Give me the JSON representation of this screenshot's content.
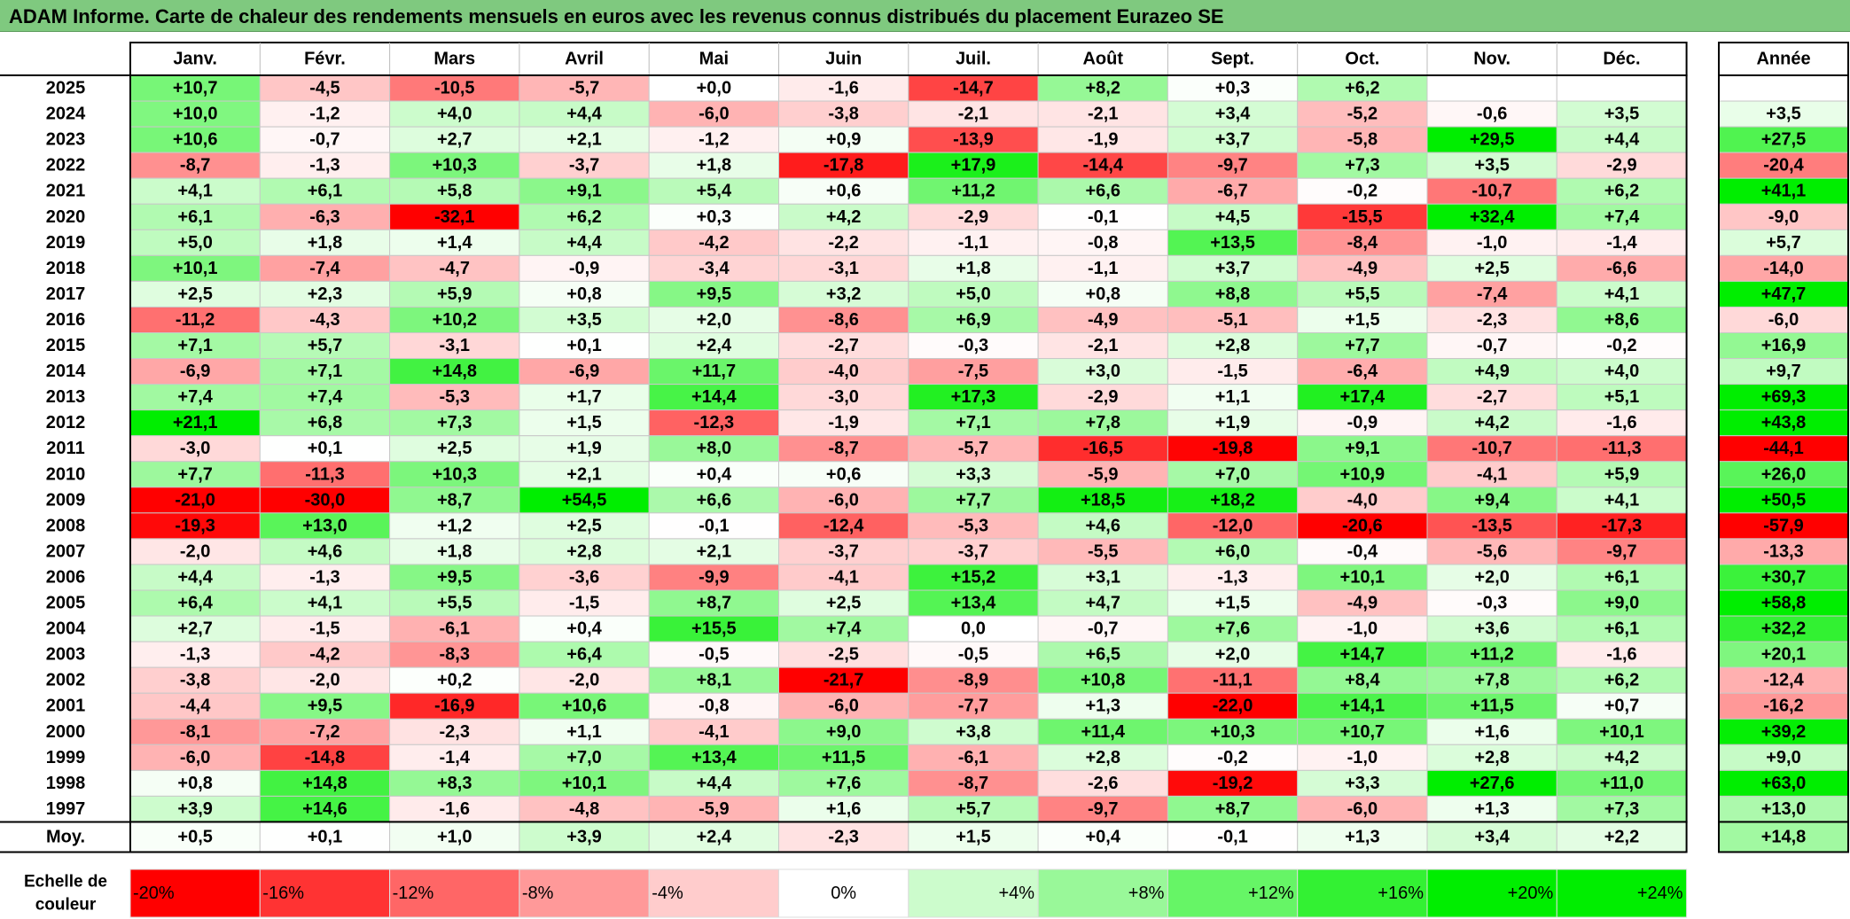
{
  "title": "ADAM Informe. Carte de chaleur des rendements mensuels en euros avec les revenus connus distribués du placement Eurazeo SE",
  "chart_data": {
    "type": "heatmap",
    "title": "ADAM Informe. Carte de chaleur des rendements mensuels en euros avec les revenus connus distribués du placement Eurazeo SE",
    "months": [
      "Janv.",
      "Févr.",
      "Mars",
      "Avril",
      "Mai",
      "Juin",
      "Juil.",
      "Août",
      "Sept.",
      "Oct.",
      "Nov.",
      "Déc."
    ],
    "annual_header": "Année",
    "rows": [
      {
        "year": "2025",
        "values": [
          "+10,7",
          "-4,5",
          "-10,5",
          "-5,7",
          "+0,0",
          "-1,6",
          "-14,7",
          "+8,2",
          "+0,3",
          "+6,2",
          "",
          ""
        ],
        "annual": ""
      },
      {
        "year": "2024",
        "values": [
          "+10,0",
          "-1,2",
          "+4,0",
          "+4,4",
          "-6,0",
          "-3,8",
          "-2,1",
          "-2,1",
          "+3,4",
          "-5,2",
          "-0,6",
          "+3,5"
        ],
        "annual": "+3,5"
      },
      {
        "year": "2023",
        "values": [
          "+10,6",
          "-0,7",
          "+2,7",
          "+2,1",
          "-1,2",
          "+0,9",
          "-13,9",
          "-1,9",
          "+3,7",
          "-5,8",
          "+29,5",
          "+4,4"
        ],
        "annual": "+27,5"
      },
      {
        "year": "2022",
        "values": [
          "-8,7",
          "-1,3",
          "+10,3",
          "-3,7",
          "+1,8",
          "-17,8",
          "+17,9",
          "-14,4",
          "-9,7",
          "+7,3",
          "+3,5",
          "-2,9"
        ],
        "annual": "-20,4"
      },
      {
        "year": "2021",
        "values": [
          "+4,1",
          "+6,1",
          "+5,8",
          "+9,1",
          "+5,4",
          "+0,6",
          "+11,2",
          "+6,6",
          "-6,7",
          "-0,2",
          "-10,7",
          "+6,2"
        ],
        "annual": "+41,1"
      },
      {
        "year": "2020",
        "values": [
          "+6,1",
          "-6,3",
          "-32,1",
          "+6,2",
          "+0,3",
          "+4,2",
          "-2,9",
          "-0,1",
          "+4,5",
          "-15,5",
          "+32,4",
          "+7,4"
        ],
        "annual": "-9,0"
      },
      {
        "year": "2019",
        "values": [
          "+5,0",
          "+1,8",
          "+1,4",
          "+4,4",
          "-4,2",
          "-2,2",
          "-1,1",
          "-0,8",
          "+13,5",
          "-8,4",
          "-1,0",
          "-1,4"
        ],
        "annual": "+5,7"
      },
      {
        "year": "2018",
        "values": [
          "+10,1",
          "-7,4",
          "-4,7",
          "-0,9",
          "-3,4",
          "-3,1",
          "+1,8",
          "-1,1",
          "+3,7",
          "-4,9",
          "+2,5",
          "-6,6"
        ],
        "annual": "-14,0"
      },
      {
        "year": "2017",
        "values": [
          "+2,5",
          "+2,3",
          "+5,9",
          "+0,8",
          "+9,5",
          "+3,2",
          "+5,0",
          "+0,8",
          "+8,8",
          "+5,5",
          "-7,4",
          "+4,1"
        ],
        "annual": "+47,7"
      },
      {
        "year": "2016",
        "values": [
          "-11,2",
          "-4,3",
          "+10,2",
          "+3,5",
          "+2,0",
          "-8,6",
          "+6,9",
          "-4,9",
          "-5,1",
          "+1,5",
          "-2,3",
          "+8,6"
        ],
        "annual": "-6,0"
      },
      {
        "year": "2015",
        "values": [
          "+7,1",
          "+5,7",
          "-3,1",
          "+0,1",
          "+2,4",
          "-2,7",
          "-0,3",
          "-2,1",
          "+2,8",
          "+7,7",
          "-0,7",
          "-0,2"
        ],
        "annual": "+16,9"
      },
      {
        "year": "2014",
        "values": [
          "-6,9",
          "+7,1",
          "+14,8",
          "-6,9",
          "+11,7",
          "-4,0",
          "-7,5",
          "+3,0",
          "-1,5",
          "-6,4",
          "+4,9",
          "+4,0"
        ],
        "annual": "+9,7"
      },
      {
        "year": "2013",
        "values": [
          "+7,4",
          "+7,4",
          "-5,3",
          "+1,7",
          "+14,4",
          "-3,0",
          "+17,3",
          "-2,9",
          "+1,1",
          "+17,4",
          "-2,7",
          "+5,1"
        ],
        "annual": "+69,3"
      },
      {
        "year": "2012",
        "values": [
          "+21,1",
          "+6,8",
          "+7,3",
          "+1,5",
          "-12,3",
          "-1,9",
          "+7,1",
          "+7,8",
          "+1,9",
          "-0,9",
          "+4,2",
          "-1,6"
        ],
        "annual": "+43,8"
      },
      {
        "year": "2011",
        "values": [
          "-3,0",
          "+0,1",
          "+2,5",
          "+1,9",
          "+8,0",
          "-8,7",
          "-5,7",
          "-16,5",
          "-19,8",
          "+9,1",
          "-10,7",
          "-11,3"
        ],
        "annual": "-44,1"
      },
      {
        "year": "2010",
        "values": [
          "+7,7",
          "-11,3",
          "+10,3",
          "+2,1",
          "+0,4",
          "+0,6",
          "+3,3",
          "-5,9",
          "+7,0",
          "+10,9",
          "-4,1",
          "+5,9"
        ],
        "annual": "+26,0"
      },
      {
        "year": "2009",
        "values": [
          "-21,0",
          "-30,0",
          "+8,7",
          "+54,5",
          "+6,6",
          "-6,0",
          "+7,7",
          "+18,5",
          "+18,2",
          "-4,0",
          "+9,4",
          "+4,1"
        ],
        "annual": "+50,5"
      },
      {
        "year": "2008",
        "values": [
          "-19,3",
          "+13,0",
          "+1,2",
          "+2,5",
          "-0,1",
          "-12,4",
          "-5,3",
          "+4,6",
          "-12,0",
          "-20,6",
          "-13,5",
          "-17,3"
        ],
        "annual": "-57,9"
      },
      {
        "year": "2007",
        "values": [
          "-2,0",
          "+4,6",
          "+1,8",
          "+2,8",
          "+2,1",
          "-3,7",
          "-3,7",
          "-5,5",
          "+6,0",
          "-0,4",
          "-5,6",
          "-9,7"
        ],
        "annual": "-13,3"
      },
      {
        "year": "2006",
        "values": [
          "+4,4",
          "-1,3",
          "+9,5",
          "-3,6",
          "-9,9",
          "-4,1",
          "+15,2",
          "+3,1",
          "-1,3",
          "+10,1",
          "+2,0",
          "+6,1"
        ],
        "annual": "+30,7"
      },
      {
        "year": "2005",
        "values": [
          "+6,4",
          "+4,1",
          "+5,5",
          "-1,5",
          "+8,7",
          "+2,5",
          "+13,4",
          "+4,7",
          "+1,5",
          "-4,9",
          "-0,3",
          "+9,0"
        ],
        "annual": "+58,8"
      },
      {
        "year": "2004",
        "values": [
          "+2,7",
          "-1,5",
          "-6,1",
          "+0,4",
          "+15,5",
          "+7,4",
          "0,0",
          "-0,7",
          "+7,6",
          "-1,0",
          "+3,6",
          "+6,1"
        ],
        "annual": "+32,2"
      },
      {
        "year": "2003",
        "values": [
          "-1,3",
          "-4,2",
          "-8,3",
          "+6,4",
          "-0,5",
          "-2,5",
          "-0,5",
          "+6,5",
          "+2,0",
          "+14,7",
          "+11,2",
          "-1,6"
        ],
        "annual": "+20,1"
      },
      {
        "year": "2002",
        "values": [
          "-3,8",
          "-2,0",
          "+0,2",
          "-2,0",
          "+8,1",
          "-21,7",
          "-8,9",
          "+10,8",
          "-11,1",
          "+8,4",
          "+7,8",
          "+6,2"
        ],
        "annual": "-12,4"
      },
      {
        "year": "2001",
        "values": [
          "-4,4",
          "+9,5",
          "-16,9",
          "+10,6",
          "-0,8",
          "-6,0",
          "-7,7",
          "+1,3",
          "-22,0",
          "+14,1",
          "+11,5",
          "+0,7"
        ],
        "annual": "-16,2"
      },
      {
        "year": "2000",
        "values": [
          "-8,1",
          "-7,2",
          "-2,3",
          "+1,1",
          "-4,1",
          "+9,0",
          "+3,8",
          "+11,4",
          "+10,3",
          "+10,7",
          "+1,6",
          "+10,1"
        ],
        "annual": "+39,2"
      },
      {
        "year": "1999",
        "values": [
          "-6,0",
          "-14,8",
          "-1,4",
          "+7,0",
          "+13,4",
          "+11,5",
          "-6,1",
          "+2,8",
          "-0,2",
          "-1,0",
          "+2,8",
          "+4,2"
        ],
        "annual": "+9,0"
      },
      {
        "year": "1998",
        "values": [
          "+0,8",
          "+14,8",
          "+8,3",
          "+10,1",
          "+4,4",
          "+7,6",
          "-8,7",
          "-2,6",
          "-19,2",
          "+3,3",
          "+27,6",
          "+11,0"
        ],
        "annual": "+63,0"
      },
      {
        "year": "1997",
        "values": [
          "+3,9",
          "+14,6",
          "-1,6",
          "-4,8",
          "-5,9",
          "+1,6",
          "+5,7",
          "-9,7",
          "+8,7",
          "-6,0",
          "+1,3",
          "+7,3"
        ],
        "annual": "+13,0"
      }
    ],
    "average_row": {
      "label": "Moy.",
      "values": [
        "+0,5",
        "+0,1",
        "+1,0",
        "+3,9",
        "+2,4",
        "-2,3",
        "+1,5",
        "+0,4",
        "-0,1",
        "+1,3",
        "+3,4",
        "+2,2"
      ],
      "annual": "+14,8"
    },
    "color_scale": {
      "label_line1": "Echelle de",
      "label_line2": "couleur",
      "steps": [
        "-20%",
        "-16%",
        "-12%",
        "-8%",
        "-4%",
        "0%",
        "+4%",
        "+8%",
        "+12%",
        "+16%",
        "+20%",
        "+24%"
      ],
      "negative_color": "#ff0000",
      "zero_color": "#ffffff",
      "positive_color": "#00ee00"
    }
  }
}
